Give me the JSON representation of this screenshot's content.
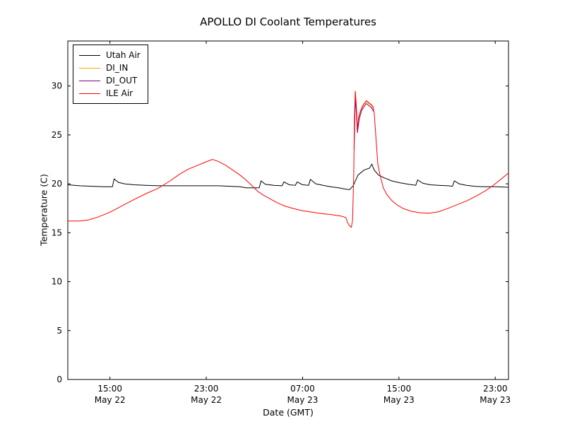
{
  "chart_data": {
    "type": "line",
    "title": "APOLLO DI Coolant Temperatures",
    "xlabel": "Date (GMT)",
    "ylabel": "Temperature (C)",
    "x_unit": "hours since May 22 00:00 GMT",
    "xlim": [
      11.5,
      48.1
    ],
    "ylim": [
      0,
      34.6
    ],
    "grid": false,
    "legend_position": "upper left",
    "yticks": [
      0,
      5,
      10,
      15,
      20,
      25,
      30
    ],
    "xticks": [
      {
        "value": 15,
        "line1": "15:00",
        "line2": "May 22"
      },
      {
        "value": 23,
        "line1": "23:00",
        "line2": "May 22"
      },
      {
        "value": 31,
        "line1": "07:00",
        "line2": "May 23"
      },
      {
        "value": 39,
        "line1": "15:00",
        "line2": "May 23"
      },
      {
        "value": 47,
        "line1": "23:00",
        "line2": "May 23"
      }
    ],
    "series": [
      {
        "name": "Utah Air",
        "color": "#000000",
        "points": [
          [
            11.5,
            19.9
          ],
          [
            12.5,
            19.8
          ],
          [
            13.5,
            19.75
          ],
          [
            14.5,
            19.7
          ],
          [
            15.2,
            19.7
          ],
          [
            15.35,
            20.5
          ],
          [
            15.7,
            20.15
          ],
          [
            16.2,
            20.0
          ],
          [
            17,
            19.9
          ],
          [
            18,
            19.85
          ],
          [
            19,
            19.8
          ],
          [
            20,
            19.8
          ],
          [
            21,
            19.8
          ],
          [
            22,
            19.8
          ],
          [
            23,
            19.8
          ],
          [
            24,
            19.8
          ],
          [
            25,
            19.75
          ],
          [
            25.8,
            19.7
          ],
          [
            26.3,
            19.6
          ],
          [
            27.4,
            19.6
          ],
          [
            27.55,
            20.3
          ],
          [
            27.9,
            19.95
          ],
          [
            28.6,
            19.85
          ],
          [
            29.3,
            19.8
          ],
          [
            29.45,
            20.2
          ],
          [
            29.9,
            19.9
          ],
          [
            30.4,
            19.85
          ],
          [
            30.55,
            20.2
          ],
          [
            31.0,
            19.9
          ],
          [
            31.5,
            19.85
          ],
          [
            31.65,
            20.45
          ],
          [
            32.1,
            20.0
          ],
          [
            32.7,
            19.85
          ],
          [
            33.3,
            19.7
          ],
          [
            34.0,
            19.6
          ],
          [
            34.6,
            19.45
          ],
          [
            34.9,
            19.4
          ],
          [
            35.2,
            19.8
          ],
          [
            35.6,
            20.9
          ],
          [
            36.1,
            21.4
          ],
          [
            36.55,
            21.6
          ],
          [
            36.75,
            22.0
          ],
          [
            36.95,
            21.4
          ],
          [
            37.3,
            20.9
          ],
          [
            37.8,
            20.6
          ],
          [
            38.4,
            20.3
          ],
          [
            39.1,
            20.1
          ],
          [
            39.8,
            19.95
          ],
          [
            40.4,
            19.85
          ],
          [
            40.55,
            20.4
          ],
          [
            41.0,
            20.05
          ],
          [
            41.6,
            19.9
          ],
          [
            42.3,
            19.85
          ],
          [
            43.1,
            19.8
          ],
          [
            43.45,
            19.75
          ],
          [
            43.6,
            20.3
          ],
          [
            44.0,
            20.0
          ],
          [
            44.6,
            19.85
          ],
          [
            45.3,
            19.75
          ],
          [
            46.0,
            19.7
          ],
          [
            47.0,
            19.7
          ],
          [
            48.1,
            19.65
          ]
        ]
      },
      {
        "name": "DI_IN",
        "color": "#ffa500",
        "points": [
          [
            35.28,
            24.0
          ],
          [
            35.38,
            29.2
          ],
          [
            35.5,
            26.8
          ],
          [
            35.55,
            25.4
          ],
          [
            35.7,
            26.9
          ],
          [
            35.9,
            27.7
          ],
          [
            36.1,
            28.1
          ],
          [
            36.3,
            28.4
          ],
          [
            36.5,
            28.2
          ],
          [
            36.7,
            28.0
          ],
          [
            36.9,
            27.6
          ]
        ]
      },
      {
        "name": "DI_OUT",
        "color": "#800080",
        "points": [
          [
            35.28,
            23.5
          ],
          [
            35.38,
            28.9
          ],
          [
            35.5,
            26.5
          ],
          [
            35.55,
            25.2
          ],
          [
            35.7,
            26.6
          ],
          [
            35.9,
            27.5
          ],
          [
            36.1,
            27.9
          ],
          [
            36.3,
            28.2
          ],
          [
            36.5,
            28.0
          ],
          [
            36.7,
            27.8
          ],
          [
            36.9,
            27.4
          ]
        ]
      },
      {
        "name": "ILE Air",
        "color": "#ff0000",
        "points": [
          [
            11.5,
            16.2
          ],
          [
            12.5,
            16.2
          ],
          [
            13.2,
            16.3
          ],
          [
            14.0,
            16.6
          ],
          [
            15.0,
            17.1
          ],
          [
            16.0,
            17.75
          ],
          [
            17.0,
            18.4
          ],
          [
            18.0,
            19.0
          ],
          [
            19.0,
            19.55
          ],
          [
            20.0,
            20.3
          ],
          [
            20.8,
            21.0
          ],
          [
            21.5,
            21.5
          ],
          [
            22.3,
            21.9
          ],
          [
            23.0,
            22.25
          ],
          [
            23.5,
            22.5
          ],
          [
            24.0,
            22.3
          ],
          [
            24.6,
            21.9
          ],
          [
            25.2,
            21.4
          ],
          [
            25.8,
            20.9
          ],
          [
            26.3,
            20.4
          ],
          [
            26.8,
            19.8
          ],
          [
            27.3,
            19.2
          ],
          [
            27.8,
            18.8
          ],
          [
            28.4,
            18.4
          ],
          [
            29.0,
            18.0
          ],
          [
            29.6,
            17.7
          ],
          [
            30.3,
            17.45
          ],
          [
            31.0,
            17.25
          ],
          [
            31.8,
            17.1
          ],
          [
            32.6,
            16.95
          ],
          [
            33.4,
            16.85
          ],
          [
            34.2,
            16.7
          ],
          [
            34.6,
            16.55
          ],
          [
            34.75,
            16.0
          ],
          [
            34.9,
            15.7
          ],
          [
            35.05,
            15.55
          ],
          [
            35.15,
            16.3
          ],
          [
            35.25,
            21.0
          ],
          [
            35.3,
            26.5
          ],
          [
            35.38,
            29.5
          ],
          [
            35.45,
            28.2
          ],
          [
            35.5,
            27.0
          ],
          [
            35.55,
            25.5
          ],
          [
            35.65,
            26.8
          ],
          [
            35.8,
            27.4
          ],
          [
            35.95,
            27.9
          ],
          [
            36.1,
            28.2
          ],
          [
            36.3,
            28.5
          ],
          [
            36.5,
            28.3
          ],
          [
            36.7,
            28.1
          ],
          [
            36.85,
            27.9
          ],
          [
            36.95,
            27.2
          ],
          [
            37.1,
            24.5
          ],
          [
            37.25,
            22.0
          ],
          [
            37.45,
            20.8
          ],
          [
            37.7,
            19.6
          ],
          [
            38.0,
            18.9
          ],
          [
            38.4,
            18.3
          ],
          [
            38.9,
            17.8
          ],
          [
            39.4,
            17.45
          ],
          [
            40.0,
            17.2
          ],
          [
            40.7,
            17.05
          ],
          [
            41.5,
            17.0
          ],
          [
            42.3,
            17.15
          ],
          [
            43.1,
            17.5
          ],
          [
            43.9,
            17.9
          ],
          [
            44.7,
            18.3
          ],
          [
            45.5,
            18.8
          ],
          [
            46.2,
            19.3
          ],
          [
            46.9,
            19.9
          ],
          [
            47.5,
            20.5
          ],
          [
            48.1,
            21.1
          ]
        ]
      }
    ]
  }
}
